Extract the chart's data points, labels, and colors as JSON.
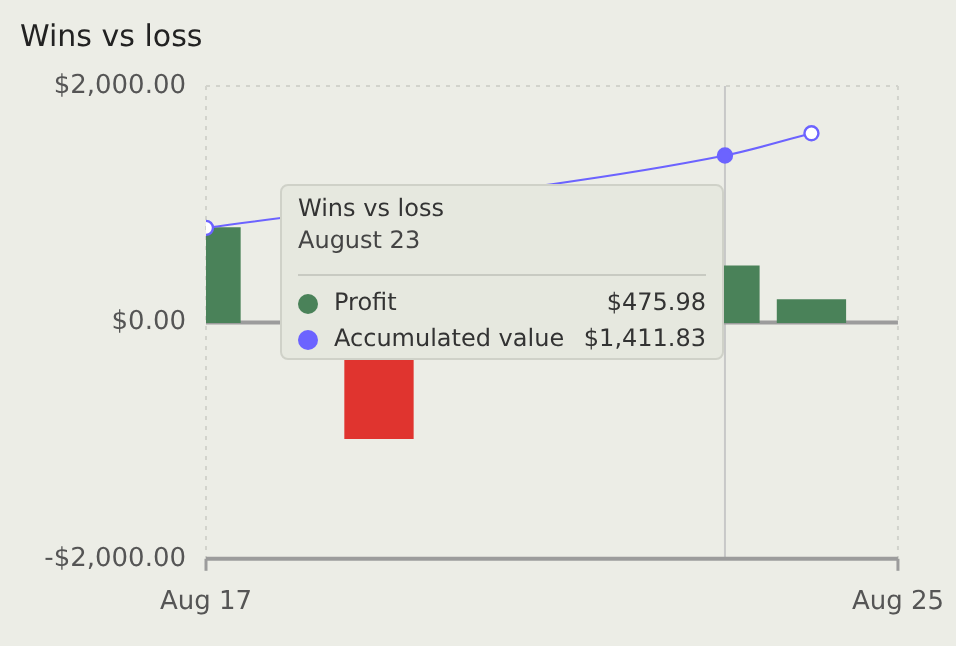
{
  "chart_data": {
    "type": "bar",
    "title": "Wins vs loss",
    "x": [
      "--08-17",
      "--08-18",
      "--08-19",
      "--08-20",
      "--08-21",
      "--08-22",
      "--08-23",
      "--08-24"
    ],
    "series": [
      {
        "name": "Profit",
        "color": "#4a8259",
        "colors": [
          "#4a8259",
          null,
          "#e0342f",
          null,
          null,
          null,
          "#4a8259",
          "#4a8259"
        ],
        "values": [
          800,
          null,
          -980,
          null,
          null,
          null,
          475.98,
          190
        ]
      },
      {
        "name": "Accumulated value",
        "type": "line",
        "color": "#6c63ff",
        "values": [
          800,
          null,
          null,
          null,
          null,
          null,
          1411.83,
          1600
        ]
      }
    ],
    "xlim": [
      "--08-17",
      "--08-25"
    ],
    "xticks": [
      {
        "value": "--08-17",
        "label": "Aug 17"
      },
      {
        "value": "--08-25",
        "label": "Aug 25"
      }
    ],
    "ylim": [
      -2000,
      2000
    ],
    "yticks": [
      {
        "value": -2000,
        "label": "-$2,000.00"
      },
      {
        "value": 0,
        "label": "$0.00"
      },
      {
        "value": 2000,
        "label": "$2,000.00"
      }
    ],
    "grid": true,
    "legend": "top left",
    "marker": "circle",
    "line_style": "solid",
    "ref_lines": [
      {
        "axis": "x",
        "value": "--08-23",
        "color": "#c8c8c8"
      }
    ],
    "annotations": [
      "August 23",
      "$475.98",
      "$1,411.83"
    ]
  }
}
